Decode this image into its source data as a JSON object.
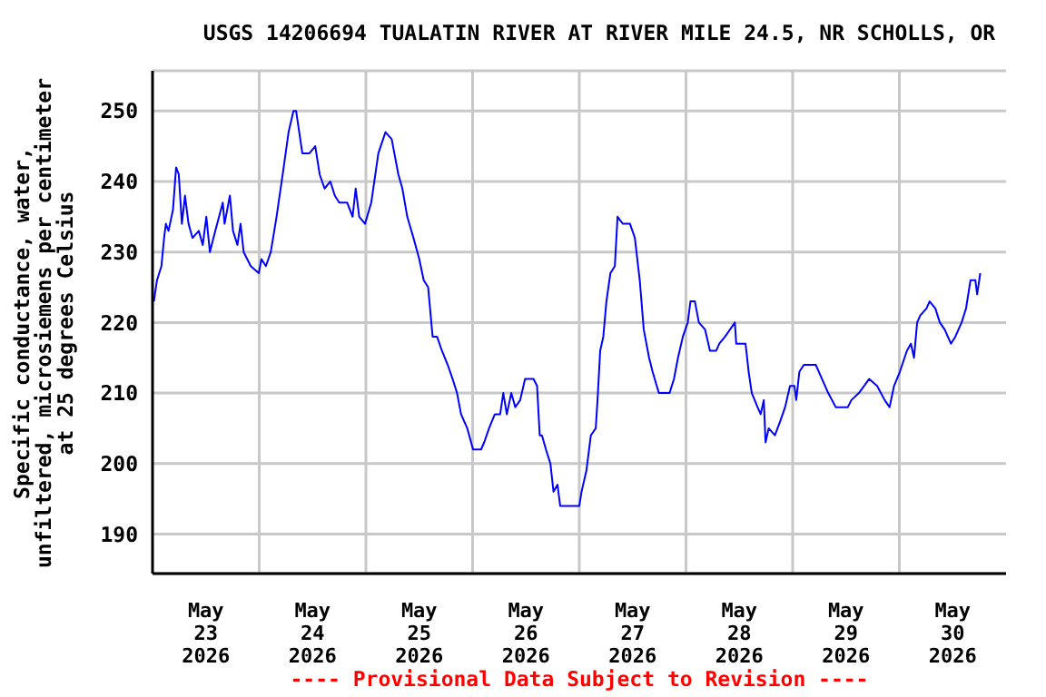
{
  "chart_data": {
    "type": "line",
    "title": "USGS 14206694 TUALATIN RIVER AT RIVER MILE 24.5, NR SCHOLLS, OR",
    "ylabel": "Specific conductance, water,\nunfiltered, microsiemens per centimeter\nat 25 degrees Celsius",
    "annotations": [
      "---- Provisional Data Subject to Revision ----"
    ],
    "x": [
      "2026-05-23T00:18",
      "2026-05-23T01:00",
      "2026-05-23T02:00",
      "2026-05-23T02:36",
      "2026-05-23T03:00",
      "2026-05-23T03:36",
      "2026-05-23T04:36",
      "2026-05-23T05:18",
      "2026-05-23T05:54",
      "2026-05-23T06:36",
      "2026-05-23T07:18",
      "2026-05-23T08:06",
      "2026-05-23T09:00",
      "2026-05-23T10:24",
      "2026-05-23T11:18",
      "2026-05-23T12:06",
      "2026-05-23T12:54",
      "2026-05-23T13:42",
      "2026-05-23T15:48",
      "2026-05-23T16:12",
      "2026-05-23T17:24",
      "2026-05-23T18:06",
      "2026-05-23T19:06",
      "2026-05-23T19:48",
      "2026-05-23T20:30",
      "2026-05-23T22:06",
      "2026-05-23T23:54",
      "2026-05-24T00:30",
      "2026-05-24T01:30",
      "2026-05-24T02:36",
      "2026-05-24T03:54",
      "2026-05-24T05:30",
      "2026-05-24T06:36",
      "2026-05-24T07:42",
      "2026-05-24T08:18",
      "2026-05-24T09:00",
      "2026-05-24T09:42",
      "2026-05-24T11:18",
      "2026-05-24T12:36",
      "2026-05-24T13:36",
      "2026-05-24T14:42",
      "2026-05-24T16:00",
      "2026-05-24T17:00",
      "2026-05-24T18:00",
      "2026-05-24T19:48",
      "2026-05-24T21:00",
      "2026-05-24T21:42",
      "2026-05-24T22:30",
      "2026-05-24T23:48",
      "2026-05-25T01:12",
      "2026-05-25T02:48",
      "2026-05-25T04:24",
      "2026-05-25T05:48",
      "2026-05-25T07:18",
      "2026-05-25T08:12",
      "2026-05-25T09:18",
      "2026-05-25T10:42",
      "2026-05-25T12:00",
      "2026-05-25T13:00",
      "2026-05-25T14:00",
      "2026-05-25T15:00",
      "2026-05-25T16:00",
      "2026-05-25T17:06",
      "2026-05-25T18:24",
      "2026-05-25T19:30",
      "2026-05-25T20:30",
      "2026-05-25T21:24",
      "2026-05-25T22:48",
      "2026-05-26T00:06",
      "2026-05-26T01:54",
      "2026-05-26T02:36",
      "2026-05-26T03:42",
      "2026-05-26T05:00",
      "2026-05-26T06:12",
      "2026-05-26T06:54",
      "2026-05-26T07:42",
      "2026-05-26T08:42",
      "2026-05-26T09:36",
      "2026-05-26T10:42",
      "2026-05-26T11:48",
      "2026-05-26T12:42",
      "2026-05-26T13:42",
      "2026-05-26T14:30",
      "2026-05-26T15:06",
      "2026-05-26T15:36",
      "2026-05-26T16:30",
      "2026-05-26T17:30",
      "2026-05-26T18:12",
      "2026-05-26T19:06",
      "2026-05-26T19:42",
      "2026-05-27T00:00",
      "2026-05-27T00:30",
      "2026-05-27T01:36",
      "2026-05-27T02:36",
      "2026-05-27T03:42",
      "2026-05-27T04:06",
      "2026-05-27T04:42",
      "2026-05-27T05:24",
      "2026-05-27T06:06",
      "2026-05-27T07:00",
      "2026-05-27T08:00",
      "2026-05-27T08:36",
      "2026-05-27T09:48",
      "2026-05-27T11:24",
      "2026-05-27T12:30",
      "2026-05-27T13:36",
      "2026-05-27T14:30",
      "2026-05-27T15:42",
      "2026-05-27T16:30",
      "2026-05-27T17:54",
      "2026-05-27T20:18",
      "2026-05-27T21:18",
      "2026-05-27T22:12",
      "2026-05-27T23:18",
      "2026-05-28T00:24",
      "2026-05-28T01:00",
      "2026-05-28T02:00",
      "2026-05-28T02:54",
      "2026-05-28T04:18",
      "2026-05-28T05:24",
      "2026-05-28T06:48",
      "2026-05-28T07:30",
      "2026-05-28T08:48",
      "2026-05-28T11:00",
      "2026-05-28T11:18",
      "2026-05-28T13:24",
      "2026-05-28T14:06",
      "2026-05-28T14:48",
      "2026-05-28T16:06",
      "2026-05-28T16:48",
      "2026-05-28T17:30",
      "2026-05-28T17:54",
      "2026-05-28T18:36",
      "2026-05-28T20:00",
      "2026-05-28T21:12",
      "2026-05-28T22:18",
      "2026-05-28T23:24",
      "2026-05-29T00:24",
      "2026-05-29T00:48",
      "2026-05-29T01:30",
      "2026-05-29T02:30",
      "2026-05-29T05:12",
      "2026-05-29T06:36",
      "2026-05-29T08:00",
      "2026-05-29T09:42",
      "2026-05-29T12:24",
      "2026-05-29T13:12",
      "2026-05-29T14:54",
      "2026-05-29T17:12",
      "2026-05-29T19:00",
      "2026-05-29T20:42",
      "2026-05-29T21:48",
      "2026-05-29T22:48",
      "2026-05-30T00:06",
      "2026-05-30T01:42",
      "2026-05-30T02:36",
      "2026-05-30T03:18",
      "2026-05-30T04:00",
      "2026-05-30T04:42",
      "2026-05-30T06:06",
      "2026-05-30T06:48",
      "2026-05-30T08:06",
      "2026-05-30T09:06",
      "2026-05-30T10:12",
      "2026-05-30T11:36",
      "2026-05-30T12:36",
      "2026-05-30T14:00",
      "2026-05-30T15:00",
      "2026-05-30T16:00",
      "2026-05-30T17:06",
      "2026-05-30T17:30",
      "2026-05-30T18:12"
    ],
    "series": [
      {
        "color": "#0000ff",
        "values": [
          223,
          226,
          228,
          232,
          234,
          233,
          236,
          242,
          241,
          234,
          238,
          234,
          232,
          233,
          231,
          235,
          230,
          232,
          237,
          234,
          238,
          233,
          231,
          234,
          230,
          228,
          227,
          229,
          228,
          230,
          235,
          242,
          247,
          250,
          250,
          247,
          244,
          244,
          245,
          241,
          239,
          240,
          238,
          237,
          237,
          235,
          239,
          235,
          234,
          237,
          244,
          247,
          246,
          241,
          239,
          235,
          232,
          229,
          226,
          225,
          218,
          218,
          216,
          214,
          212,
          210,
          207,
          205,
          202,
          202,
          203,
          205,
          207,
          207,
          210,
          207,
          210,
          208,
          209,
          212,
          212,
          212,
          211,
          204,
          204,
          202,
          200,
          196,
          197,
          194,
          194,
          196,
          199,
          204,
          205,
          209,
          216,
          218,
          223,
          227,
          228,
          235,
          234,
          234,
          232,
          226,
          219,
          215,
          213,
          210,
          210,
          212,
          215,
          218,
          220,
          223,
          223,
          220,
          219,
          216,
          216,
          217,
          218,
          220,
          217,
          217,
          213,
          210,
          208,
          207,
          209,
          203,
          205,
          204,
          206,
          208,
          211,
          211,
          209,
          213,
          214,
          214,
          212,
          210,
          208,
          208,
          209,
          210,
          212,
          211,
          209,
          208,
          211,
          213,
          216,
          217,
          215,
          220,
          221,
          222,
          223,
          222,
          220,
          219,
          217,
          218,
          220,
          222,
          226,
          226,
          224,
          227
        ]
      }
    ],
    "xlim": [
      "2026-05-23T00:00",
      "2026-05-31T00:00"
    ],
    "xticks": [
      {
        "value": "2026-05-23T12:00",
        "label": "May\n23\n2026"
      },
      {
        "value": "2026-05-24T00:00",
        "label": null
      },
      {
        "value": "2026-05-24T12:00",
        "label": "May\n24\n2026"
      },
      {
        "value": "2026-05-25T00:00",
        "label": null
      },
      {
        "value": "2026-05-25T12:00",
        "label": "May\n25\n2026"
      },
      {
        "value": "2026-05-26T00:00",
        "label": null
      },
      {
        "value": "2026-05-26T12:00",
        "label": "May\n26\n2026"
      },
      {
        "value": "2026-05-27T00:00",
        "label": null
      },
      {
        "value": "2026-05-27T12:00",
        "label": "May\n27\n2026"
      },
      {
        "value": "2026-05-28T00:00",
        "label": null
      },
      {
        "value": "2026-05-28T12:00",
        "label": "May\n28\n2026"
      },
      {
        "value": "2026-05-29T00:00",
        "label": null
      },
      {
        "value": "2026-05-29T12:00",
        "label": "May\n29\n2026"
      },
      {
        "value": "2026-05-30T00:00",
        "label": null
      },
      {
        "value": "2026-05-30T12:00",
        "label": "May\n30\n2026"
      }
    ],
    "ylim": [
      184.4,
      255.7
    ],
    "yticks": [
      190,
      200,
      210,
      220,
      230,
      240,
      250
    ],
    "grid": true,
    "marker": "none"
  }
}
